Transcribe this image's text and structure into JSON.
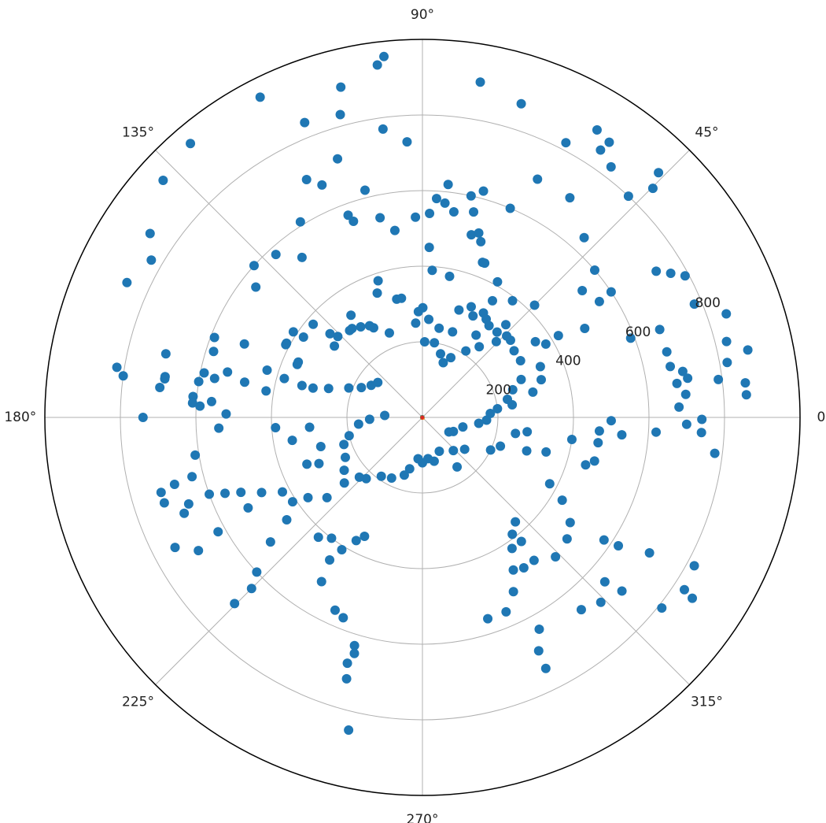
{
  "chart_data": {
    "type": "scatter",
    "projection": "polar",
    "rlim": [
      0,
      1000
    ],
    "radial_ticks": [
      200,
      400,
      600,
      800
    ],
    "radial_tick_labels": [
      "200",
      "400",
      "600",
      "800"
    ],
    "angular_ticks": [
      0,
      45,
      90,
      135,
      180,
      225,
      270,
      315
    ],
    "angular_tick_labels": [
      "0°",
      "45°",
      "90°",
      "135°",
      "180°",
      "225°",
      "270°",
      "315°"
    ],
    "grid": true,
    "legend": "none",
    "scatter_color": "#1f77b4",
    "spirals": [
      {
        "color": "#1f77b4",
        "theta_start": 7.16,
        "theta_end": 15.15,
        "k": 0.1,
        "phase": 0
      },
      {
        "color": "#2ca02c",
        "theta_start": 7.16,
        "theta_end": 15.15,
        "k": 0.1,
        "phase": 1.5708
      },
      {
        "color": "#ff7f0e",
        "theta_start": 7.16,
        "theta_end": 15.15,
        "k": 0.1,
        "phase": 3.1416
      },
      {
        "color": "#d62728",
        "theta_start": 7.16,
        "theta_end": 12.45,
        "k": 0.1,
        "phase": 4.7124
      }
    ],
    "points_deg_r": [
      [
        96.1,
        960
      ],
      [
        97.3,
        940
      ],
      [
        103.9,
        900
      ],
      [
        105.2,
        830
      ],
      [
        108.2,
        720
      ],
      [
        97.8,
        770
      ],
      [
        93.2,
        730
      ],
      [
        111.8,
        840
      ],
      [
        116.9,
        950
      ],
      [
        130.3,
        950
      ],
      [
        137.6,
        930
      ],
      [
        146.0,
        870
      ],
      [
        149.9,
        830
      ],
      [
        155.5,
        860
      ],
      [
        172.1,
        800
      ],
      [
        170.7,
        820
      ],
      [
        166.1,
        700
      ],
      [
        168.5,
        590
      ],
      [
        169.4,
        560
      ],
      [
        166.9,
        530
      ],
      [
        177.1,
        590
      ],
      [
        171.5,
        690
      ],
      [
        174.8,
        610
      ],
      [
        159.0,
        590
      ],
      [
        162.5,
        580
      ],
      [
        157.6,
        510
      ],
      [
        163.1,
        430
      ],
      [
        164.3,
        380
      ],
      [
        157.1,
        360
      ],
      [
        151.4,
        410
      ],
      [
        146.5,
        410
      ],
      [
        139.6,
        380
      ],
      [
        137.9,
        330
      ],
      [
        136.3,
        310
      ],
      [
        128.4,
        300
      ],
      [
        124.3,
        290
      ],
      [
        118.6,
        270
      ],
      [
        111.4,
        240
      ],
      [
        102.3,
        320
      ],
      [
        94.1,
        250
      ],
      [
        89.8,
        290
      ],
      [
        92.2,
        280
      ],
      [
        88.3,
        200
      ],
      [
        80.9,
        200
      ],
      [
        74.1,
        175
      ],
      [
        69.2,
        155
      ],
      [
        64.6,
        175
      ],
      [
        56.8,
        210
      ],
      [
        51.2,
        240
      ],
      [
        45.7,
        280
      ],
      [
        41.2,
        310
      ],
      [
        48.8,
        300
      ],
      [
        56.9,
        260
      ],
      [
        63.5,
        300
      ],
      [
        70.6,
        240
      ],
      [
        79.4,
        240
      ],
      [
        86.3,
        260
      ],
      [
        71.2,
        300
      ],
      [
        66.2,
        320
      ],
      [
        59.0,
        360
      ],
      [
        52.3,
        390
      ],
      [
        45.0,
        420
      ],
      [
        33.8,
        360
      ],
      [
        23.3,
        340
      ],
      [
        17.6,
        330
      ],
      [
        12.9,
        300
      ],
      [
        6.6,
        200
      ],
      [
        3.3,
        180
      ],
      [
        -2.5,
        170
      ],
      [
        354.0,
        150
      ],
      [
        346.7,
        110
      ],
      [
        335.6,
        90
      ],
      [
        331.3,
        80
      ],
      [
        68.8,
        440
      ],
      [
        71.6,
        490
      ],
      [
        75.0,
        500
      ],
      [
        77.6,
        600
      ],
      [
        74.9,
        620
      ],
      [
        67.2,
        600
      ],
      [
        81.3,
        550
      ],
      [
        83.7,
        620
      ],
      [
        86.3,
        580
      ],
      [
        87.7,
        450
      ],
      [
        79.1,
        380
      ],
      [
        86.2,
        390
      ],
      [
        30.7,
        380
      ],
      [
        31.0,
        420
      ],
      [
        28.7,
        490
      ],
      [
        33.2,
        560
      ],
      [
        40.5,
        600
      ],
      [
        48.0,
        640
      ],
      [
        56.1,
        700
      ],
      [
        64.2,
        700
      ],
      [
        72.5,
        870
      ],
      [
        80.2,
        900
      ],
      [
        62.4,
        820
      ],
      [
        56.3,
        850
      ],
      [
        53.0,
        830
      ],
      [
        47.0,
        800
      ],
      [
        44.8,
        860
      ],
      [
        46.0,
        900
      ],
      [
        55.8,
        880
      ],
      [
        58.7,
        890
      ],
      [
        33.6,
        600
      ],
      [
        38.4,
        540
      ],
      [
        32.0,
        730
      ],
      [
        30.1,
        760
      ],
      [
        28.3,
        790
      ],
      [
        20.8,
        590
      ],
      [
        20.3,
        670
      ],
      [
        22.6,
        780
      ],
      [
        18.8,
        850
      ],
      [
        11.6,
        670
      ],
      [
        15.0,
        670
      ],
      [
        10.0,
        700
      ],
      [
        8.4,
        710
      ],
      [
        7.6,
        680
      ],
      [
        5.0,
        700
      ],
      [
        2.3,
        680
      ],
      [
        -3.1,
        740
      ],
      [
        -7.0,
        780
      ],
      [
        7.3,
        790
      ],
      [
        10.2,
        820
      ],
      [
        11.7,
        880
      ],
      [
        14.0,
        830
      ],
      [
        6.1,
        860
      ],
      [
        4.0,
        860
      ],
      [
        -0.4,
        740
      ],
      [
        -1.5,
        700
      ],
      [
        -3.6,
        620
      ],
      [
        -4.4,
        470
      ],
      [
        -9.8,
        250
      ],
      [
        -7.8,
        280
      ],
      [
        -1.0,
        500
      ],
      [
        -5.0,
        530
      ],
      [
        -8.2,
        470
      ],
      [
        -8.4,
        400
      ],
      [
        -15.6,
        340
      ],
      [
        -17.8,
        290
      ],
      [
        -20.2,
        220
      ],
      [
        -25.5,
        200
      ],
      [
        -37.0,
        140
      ],
      [
        -47.0,
        120
      ],
      [
        -55.0,
        160
      ],
      [
        -63.5,
        100
      ],
      [
        -75.0,
        120
      ],
      [
        -82.3,
        110
      ],
      [
        -90.0,
        120
      ],
      [
        -96.0,
        110
      ],
      [
        -104.0,
        140
      ],
      [
        -107.5,
        160
      ],
      [
        -117.0,
        180
      ],
      [
        -125.0,
        190
      ],
      [
        -132.6,
        220
      ],
      [
        -136.6,
        230
      ],
      [
        -140.0,
        270
      ],
      [
        -146.0,
        250
      ],
      [
        -152.6,
        230
      ],
      [
        -161.0,
        220
      ],
      [
        -166.0,
        200
      ],
      [
        -174.0,
        170
      ],
      [
        -178.0,
        140
      ],
      [
        -183.0,
        100
      ],
      [
        -230.0,
        300
      ],
      [
        -235.0,
        330
      ],
      [
        -250.0,
        350
      ],
      [
        -252.0,
        380
      ],
      [
        -260.0,
        320
      ],
      [
        -240.0,
        280
      ],
      [
        -27.5,
        380
      ],
      [
        -30.6,
        430
      ],
      [
        -35.4,
        480
      ],
      [
        -40.0,
        500
      ],
      [
        -46.3,
        510
      ],
      [
        -52.0,
        480
      ],
      [
        -56.0,
        480
      ],
      [
        -59.2,
        470
      ],
      [
        -55.6,
        420
      ],
      [
        -51.4,
        420
      ],
      [
        -52.4,
        390
      ],
      [
        -48.3,
        370
      ],
      [
        -62.4,
        520
      ],
      [
        -66.7,
        560
      ],
      [
        -72.0,
        560
      ],
      [
        -61.1,
        640
      ],
      [
        -63.5,
        690
      ],
      [
        -63.8,
        740
      ],
      [
        -14.2,
        470
      ],
      [
        -16.2,
        450
      ],
      [
        -34.0,
        580
      ],
      [
        -33.2,
        620
      ],
      [
        -42.0,
        650
      ],
      [
        -41.0,
        700
      ],
      [
        -30.8,
        700
      ],
      [
        -28.6,
        820
      ],
      [
        -33.3,
        830
      ],
      [
        -33.8,
        860
      ],
      [
        -38.5,
        810
      ],
      [
        -46.0,
        680
      ],
      [
        -50.4,
        660
      ],
      [
        -116.0,
        350
      ],
      [
        -118.3,
        370
      ],
      [
        -121.4,
        410
      ],
      [
        -127.0,
        400
      ],
      [
        -131.0,
        420
      ],
      [
        -123.1,
        450
      ],
      [
        -121.6,
        510
      ],
      [
        -114.4,
        560
      ],
      [
        -111.6,
        570
      ],
      [
        -106.6,
        630
      ],
      [
        -106.1,
        650
      ],
      [
        -107.0,
        680
      ],
      [
        -106.2,
        720
      ],
      [
        -103.3,
        850
      ],
      [
        -140.0,
        330
      ],
      [
        -145.0,
        370
      ],
      [
        -147.0,
        410
      ],
      [
        -143.0,
        450
      ],
      [
        -140.7,
        520
      ],
      [
        -137.0,
        600
      ],
      [
        -135.0,
        640
      ],
      [
        -135.3,
        700
      ],
      [
        -152.0,
        420
      ],
      [
        -155.0,
        470
      ],
      [
        -157.6,
        520
      ],
      [
        -152.6,
        520
      ],
      [
        -159.0,
        560
      ],
      [
        -160.2,
        600
      ],
      [
        -159.7,
        660
      ],
      [
        -161.7,
        720
      ],
      [
        -152.3,
        740
      ],
      [
        -149.3,
        690
      ],
      [
        -150.8,
        620
      ],
      [
        -158.1,
        680
      ],
      [
        -164.0,
        720
      ],
      [
        -164.9,
        680
      ],
      [
        -165.6,
        630
      ],
      [
        -170.6,
        610
      ],
      [
        -177.0,
        540
      ],
      [
        -181.0,
        520
      ],
      [
        -184.3,
        560
      ],
      [
        -183.6,
        610
      ],
      [
        -180.0,
        740
      ],
      [
        -186.5,
        700
      ],
      [
        -189.0,
        690
      ],
      [
        -189.1,
        600
      ],
      [
        -191.2,
        480
      ],
      [
        -189.6,
        420
      ],
      [
        -194.8,
        330
      ],
      [
        -195.0,
        300
      ],
      [
        -197.1,
        260
      ],
      [
        -201.8,
        210
      ],
      [
        -206.0,
        180
      ],
      [
        -212.0,
        160
      ],
      [
        -218.0,
        150
      ],
      [
        -204.0,
        360
      ],
      [
        -208.0,
        410
      ],
      [
        -214.0,
        380
      ],
      [
        -219.0,
        300
      ],
      [
        -175.0,
        300
      ],
      [
        -170.0,
        350
      ],
      [
        -176.0,
        390
      ],
      [
        -164.0,
        280
      ],
      [
        -156.0,
        300
      ],
      [
        -158.0,
        330
      ],
      [
        -218.0,
        560
      ],
      [
        -222.0,
        600
      ],
      [
        -228.0,
        580
      ],
      [
        -233.0,
        530
      ],
      [
        -238.0,
        610
      ],
      [
        -244.0,
        700
      ],
      [
        -246.6,
        670
      ],
      [
        -249.8,
        570
      ],
      [
        -250.6,
        550
      ],
      [
        -255.8,
        620
      ],
      [
        -258.0,
        540
      ],
      [
        -261.6,
        500
      ],
      [
        -268.0,
        530
      ],
      [
        -272.0,
        540
      ],
      [
        -276.0,
        570
      ],
      [
        -284.0,
        560
      ],
      [
        -287.0,
        510
      ],
      [
        -292.0,
        440
      ],
      [
        -299.0,
        410
      ],
      [
        -300.3,
        320
      ],
      [
        -303.0,
        310
      ],
      [
        -306.0,
        300
      ],
      [
        -312.0,
        330
      ],
      [
        -316.0,
        310
      ],
      [
        -324.0,
        300
      ],
      [
        -330.0,
        300
      ],
      [
        -339.0,
        280
      ],
      [
        -343.0,
        250
      ],
      [
        -348.0,
        230
      ],
      [
        -352.0,
        240
      ]
    ]
  }
}
